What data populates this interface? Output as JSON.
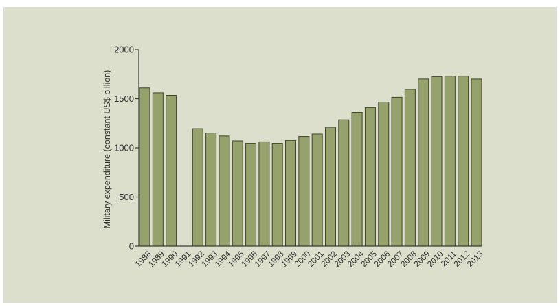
{
  "chart_data": {
    "type": "bar",
    "title": "",
    "xlabel": "",
    "ylabel": "Military expenditure (constant US$ billion)",
    "ylim": [
      0,
      2000
    ],
    "yticks": [
      "0",
      "500",
      "1000",
      "1500",
      "2000"
    ],
    "categories": [
      "1988",
      "1989",
      "1990",
      "1991",
      "1992",
      "1993",
      "1994",
      "1995",
      "1996",
      "1997",
      "1998",
      "1999",
      "2000",
      "2001",
      "2002",
      "2003",
      "2004",
      "2005",
      "2006",
      "2007",
      "2008",
      "2009",
      "2010",
      "2011",
      "2012",
      "2013"
    ],
    "values": [
      1610,
      1560,
      1535,
      null,
      1195,
      1150,
      1120,
      1070,
      1045,
      1060,
      1045,
      1075,
      1115,
      1140,
      1210,
      1285,
      1360,
      1410,
      1465,
      1515,
      1595,
      1700,
      1725,
      1730,
      1730,
      1700
    ],
    "bar_color": "#95a26c",
    "bar_edge_color": "#3f442c",
    "background_color": "#dcdfcb",
    "grid": false,
    "legend": "none"
  }
}
